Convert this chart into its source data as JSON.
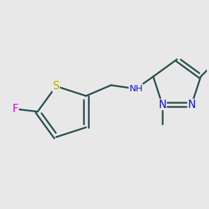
{
  "background_color": "#e8e8e8",
  "bond_color": "#2a5050",
  "bond_width": 1.8,
  "atom_colors": {
    "F": "#dd00dd",
    "S": "#bbaa00",
    "N": "#1010dd",
    "C": "#2a5050",
    "H": "#2a5050"
  },
  "font_size": 10,
  "title": ""
}
